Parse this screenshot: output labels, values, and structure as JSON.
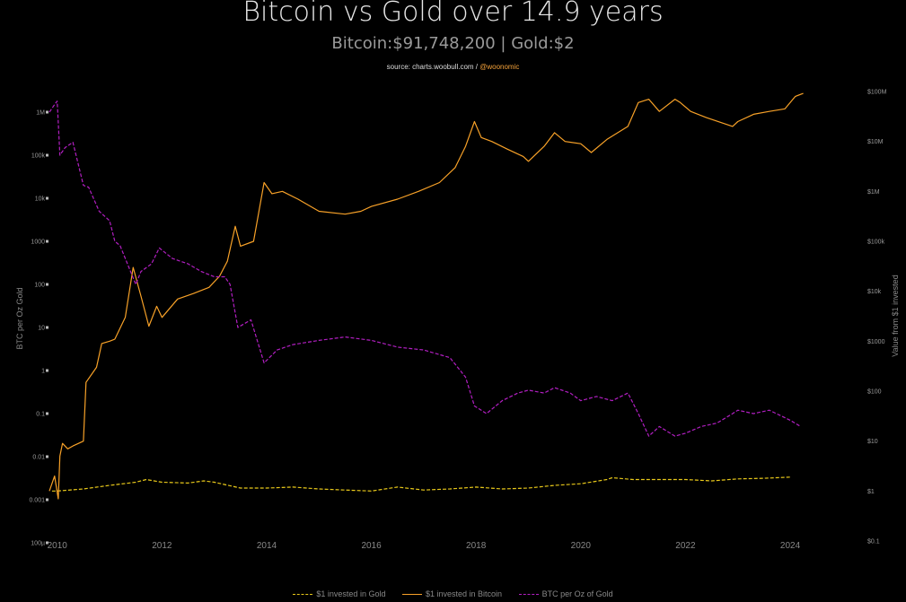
{
  "header": {
    "title": "Bitcoin vs Gold over 14.9 years",
    "subtitle": "Bitcoin:$91,748,200 | Gold:$2",
    "source_prefix": "source: charts.woobull.com / ",
    "source_handle": "@woonomic"
  },
  "colors": {
    "bitcoin": "#f7a128",
    "gold": "#e8c81a",
    "ratio": "#b21fc2",
    "background": "#000000"
  },
  "chart_data": {
    "type": "line",
    "title": "Bitcoin vs Gold over 14.9 years",
    "x_ticks": [
      "2010",
      "2012",
      "2014",
      "2016",
      "2018",
      "2020",
      "2022",
      "2024"
    ],
    "left_axis": {
      "label": "BTC per Oz Gold",
      "scale": "log",
      "ticks": [
        "1M",
        "100k",
        "10k",
        "1000",
        "100",
        "10",
        "1",
        "0.1",
        "0.01",
        "0.001",
        "100µ"
      ],
      "range": [
        0.0001,
        3000000
      ]
    },
    "right_axis": {
      "label": "Value from $1 invested",
      "scale": "log",
      "ticks": [
        "$100M",
        "$10M",
        "$1M",
        "$100k",
        "$10k",
        "$1000",
        "$100",
        "$10",
        "$1",
        "$0.1"
      ],
      "range": [
        0.1,
        140000000
      ]
    },
    "x_range": [
      2009.85,
      2024.6
    ],
    "series": [
      {
        "name": "$1 invested in Gold",
        "axis": "right",
        "style": "dashed",
        "x": [
          2009.9,
          2010.0,
          2010.5,
          2011.0,
          2011.5,
          2011.7,
          2012.0,
          2012.5,
          2012.8,
          2013.0,
          2013.5,
          2014.0,
          2014.5,
          2015.0,
          2015.5,
          2016.0,
          2016.5,
          2017.0,
          2017.5,
          2018.0,
          2018.5,
          2019.0,
          2019.5,
          2020.0,
          2020.5,
          2020.6,
          2021.0,
          2021.5,
          2022.0,
          2022.5,
          2023.0,
          2023.5,
          2024.0
        ],
        "values": [
          1.0,
          1.0,
          1.1,
          1.3,
          1.5,
          1.7,
          1.5,
          1.45,
          1.6,
          1.5,
          1.15,
          1.15,
          1.2,
          1.1,
          1.05,
          1.0,
          1.2,
          1.05,
          1.1,
          1.2,
          1.1,
          1.15,
          1.3,
          1.4,
          1.7,
          1.85,
          1.7,
          1.7,
          1.7,
          1.6,
          1.75,
          1.8,
          1.9
        ]
      },
      {
        "name": "$1 invested in Bitcoin",
        "axis": "right",
        "style": "solid",
        "x": [
          2009.85,
          2009.95,
          2010.02,
          2010.05,
          2010.1,
          2010.2,
          2010.3,
          2010.5,
          2010.55,
          2010.75,
          2010.85,
          2011.0,
          2011.1,
          2011.3,
          2011.45,
          2011.6,
          2011.75,
          2011.9,
          2012.0,
          2012.3,
          2012.6,
          2012.9,
          2013.1,
          2013.25,
          2013.4,
          2013.5,
          2013.75,
          2013.95,
          2014.1,
          2014.3,
          2014.6,
          2015.0,
          2015.5,
          2015.8,
          2016.0,
          2016.5,
          2016.9,
          2017.3,
          2017.6,
          2017.8,
          2017.97,
          2018.1,
          2018.3,
          2018.6,
          2018.9,
          2019.0,
          2019.3,
          2019.5,
          2019.7,
          2020.0,
          2020.2,
          2020.5,
          2020.9,
          2021.1,
          2021.3,
          2021.5,
          2021.8,
          2021.9,
          2022.1,
          2022.4,
          2022.9,
          2023.0,
          2023.3,
          2023.6,
          2023.9,
          2024.1,
          2024.25
        ],
        "values": [
          1.0,
          2.0,
          0.7,
          5,
          9,
          7,
          8,
          10,
          150,
          300,
          900,
          1000,
          1100,
          3000,
          30000,
          8000,
          2000,
          5000,
          3000,
          7000,
          9000,
          12000,
          20000,
          40000,
          200000,
          80000,
          100000,
          1500000,
          900000,
          1000000,
          700000,
          400000,
          350000,
          400000,
          500000,
          700000,
          1000000,
          1500000,
          3000000,
          8000000,
          25000000,
          12000000,
          10000000,
          7000000,
          5000000,
          4000000,
          8000000,
          15000000,
          10000000,
          9000000,
          6000000,
          11000000,
          20000000,
          60000000,
          70000000,
          40000000,
          70000000,
          60000000,
          40000000,
          30000000,
          20000000,
          25000000,
          35000000,
          40000000,
          45000000,
          80000000,
          91748200
        ]
      },
      {
        "name": "BTC per Oz of Gold",
        "axis": "left",
        "style": "dashed",
        "x": [
          2009.85,
          2009.95,
          2010.0,
          2010.05,
          2010.15,
          2010.3,
          2010.5,
          2010.6,
          2010.8,
          2011.0,
          2011.1,
          2011.2,
          2011.4,
          2011.5,
          2011.6,
          2011.8,
          2011.95,
          2012.2,
          2012.5,
          2012.75,
          2013.0,
          2013.2,
          2013.3,
          2013.45,
          2013.7,
          2013.95,
          2014.2,
          2014.5,
          2015.0,
          2015.5,
          2016.0,
          2016.5,
          2017.0,
          2017.5,
          2017.8,
          2017.97,
          2018.2,
          2018.5,
          2018.8,
          2019.0,
          2019.3,
          2019.5,
          2019.8,
          2020.0,
          2020.3,
          2020.6,
          2020.9,
          2021.1,
          2021.3,
          2021.5,
          2021.8,
          2022.0,
          2022.3,
          2022.6,
          2022.9,
          2023.0,
          2023.3,
          2023.6,
          2024.0,
          2024.2
        ],
        "values": [
          1000000,
          1500000,
          1800000,
          100000,
          150000,
          200000,
          20000,
          18000,
          5000,
          3000,
          1000,
          800,
          200,
          100,
          200,
          300,
          700,
          400,
          300,
          200,
          150,
          150,
          100,
          10,
          15,
          1.5,
          3,
          4,
          5,
          6,
          5,
          3.5,
          3,
          2,
          0.7,
          0.15,
          0.1,
          0.2,
          0.3,
          0.35,
          0.3,
          0.4,
          0.3,
          0.2,
          0.25,
          0.2,
          0.3,
          0.1,
          0.03,
          0.05,
          0.03,
          0.035,
          0.05,
          0.06,
          0.1,
          0.12,
          0.1,
          0.12,
          0.07,
          0.05
        ]
      }
    ]
  },
  "legend": {
    "gold_label": "$1 invested in Gold",
    "bitcoin_label": "$1 invested in Bitcoin",
    "ratio_label": "BTC per Oz of Gold"
  }
}
